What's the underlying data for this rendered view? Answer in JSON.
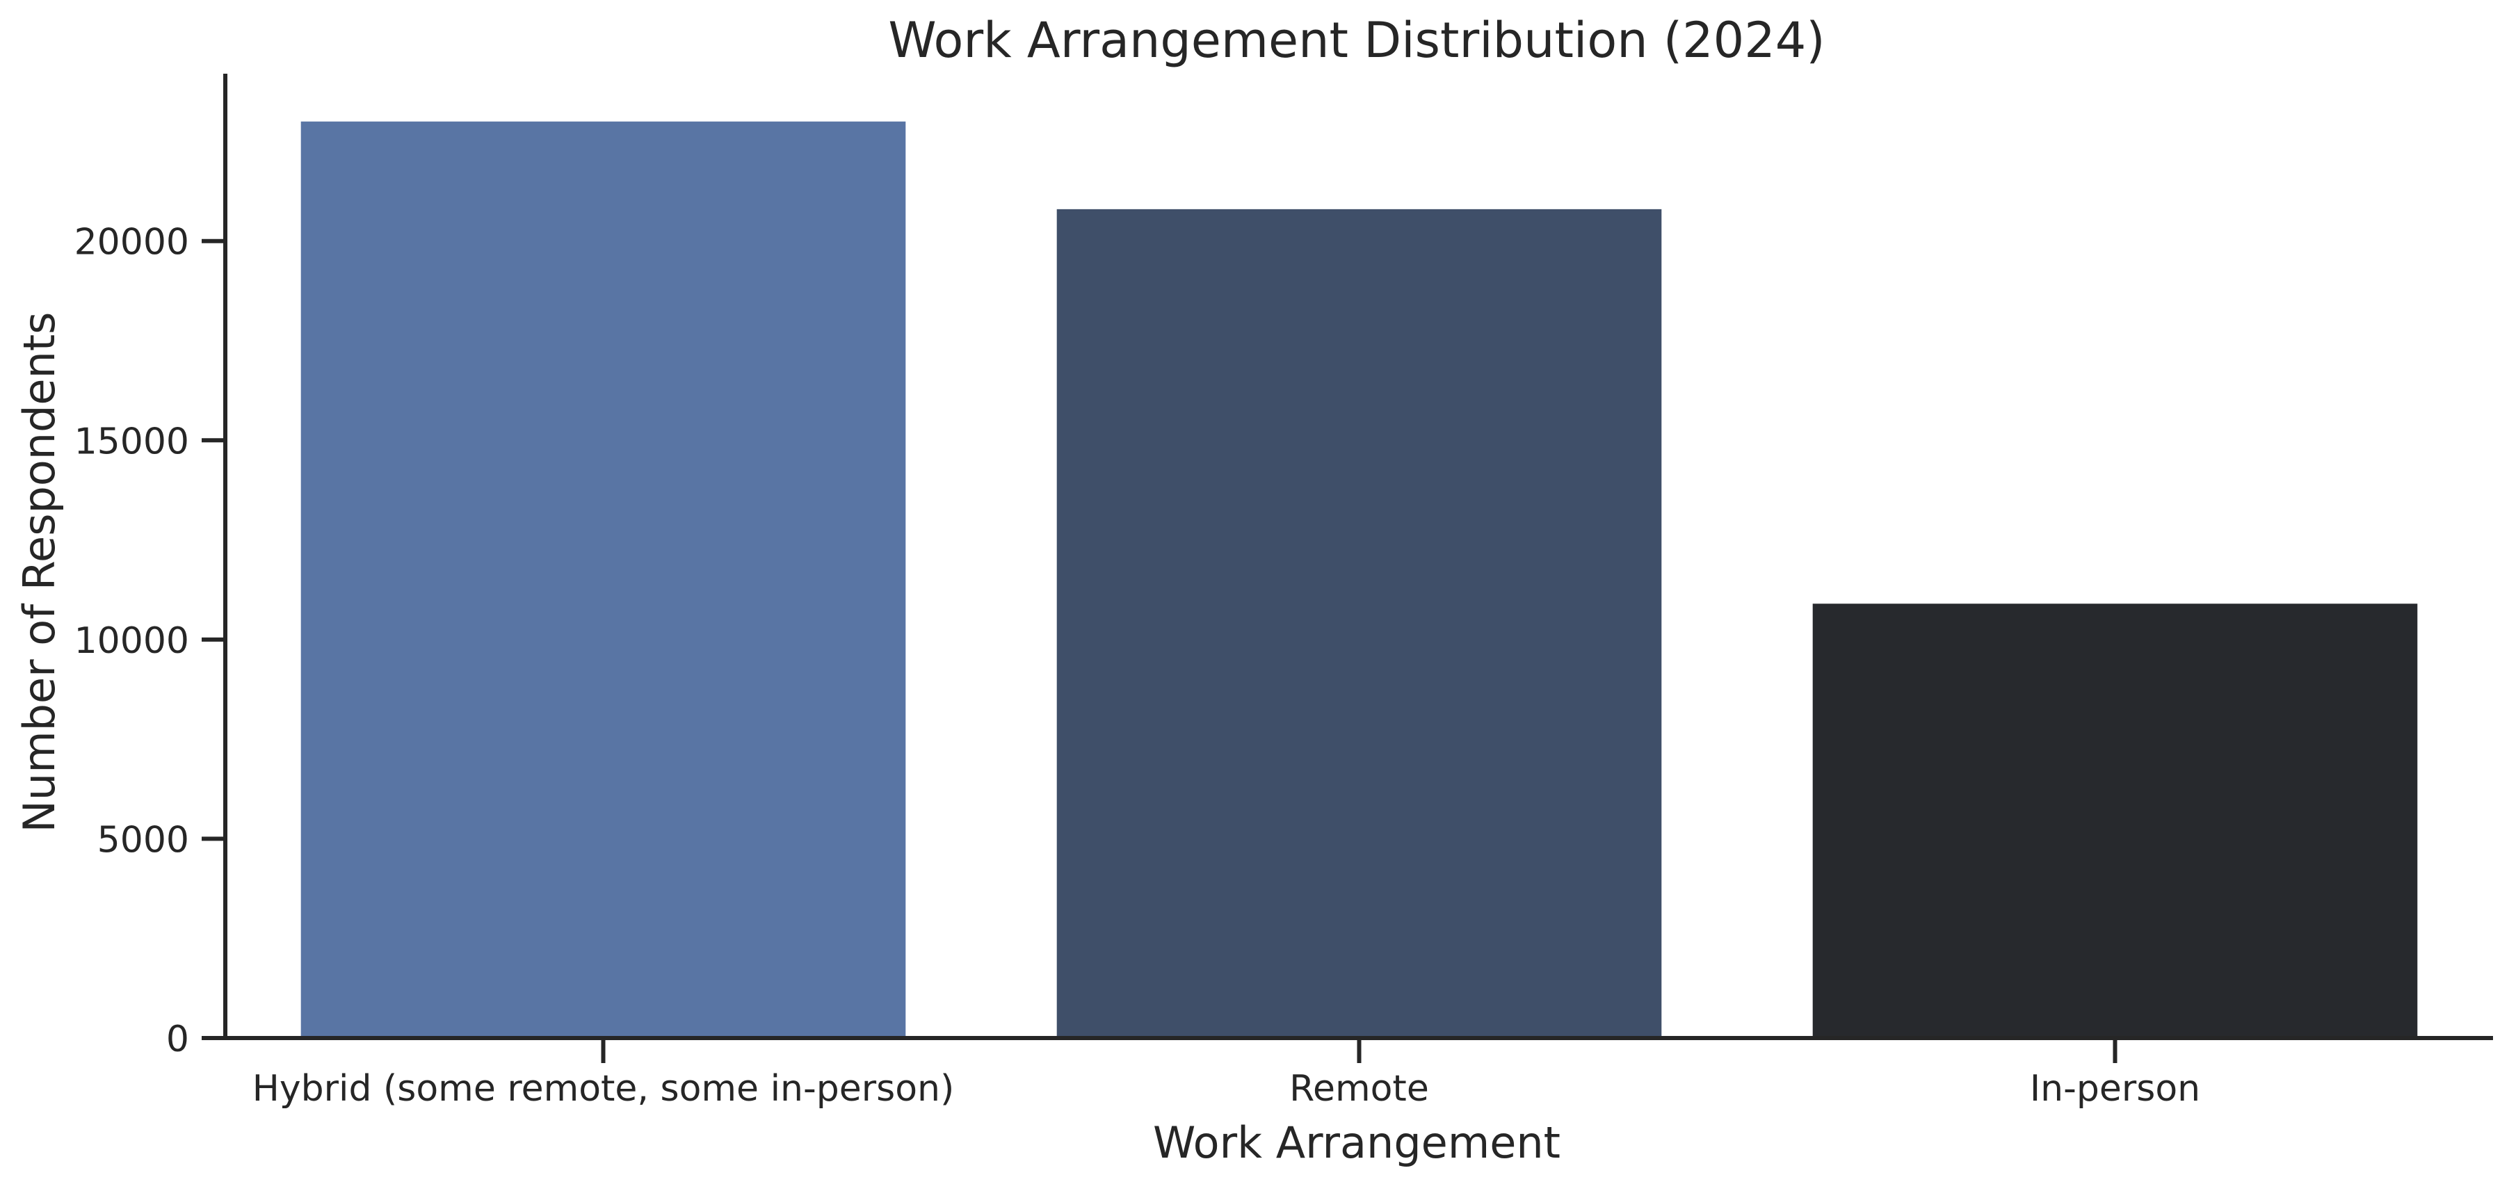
{
  "chart_data": {
    "type": "bar",
    "title": "Work Arrangement Distribution (2024)",
    "xlabel": "Work Arrangement",
    "ylabel": "Number of Respondents",
    "categories": [
      "Hybrid (some remote, some in-person)",
      "Remote",
      "In-person"
    ],
    "values": [
      23000,
      20800,
      10900
    ],
    "colors": [
      "#5975a4",
      "#3f4f69",
      "#27292d"
    ],
    "ylim": [
      0,
      24200
    ],
    "yticks": [
      0,
      5000,
      10000,
      15000,
      20000
    ],
    "ytick_labels": [
      "0",
      "5000",
      "10000",
      "15000",
      "20000"
    ],
    "grid": false,
    "legend": "none"
  }
}
